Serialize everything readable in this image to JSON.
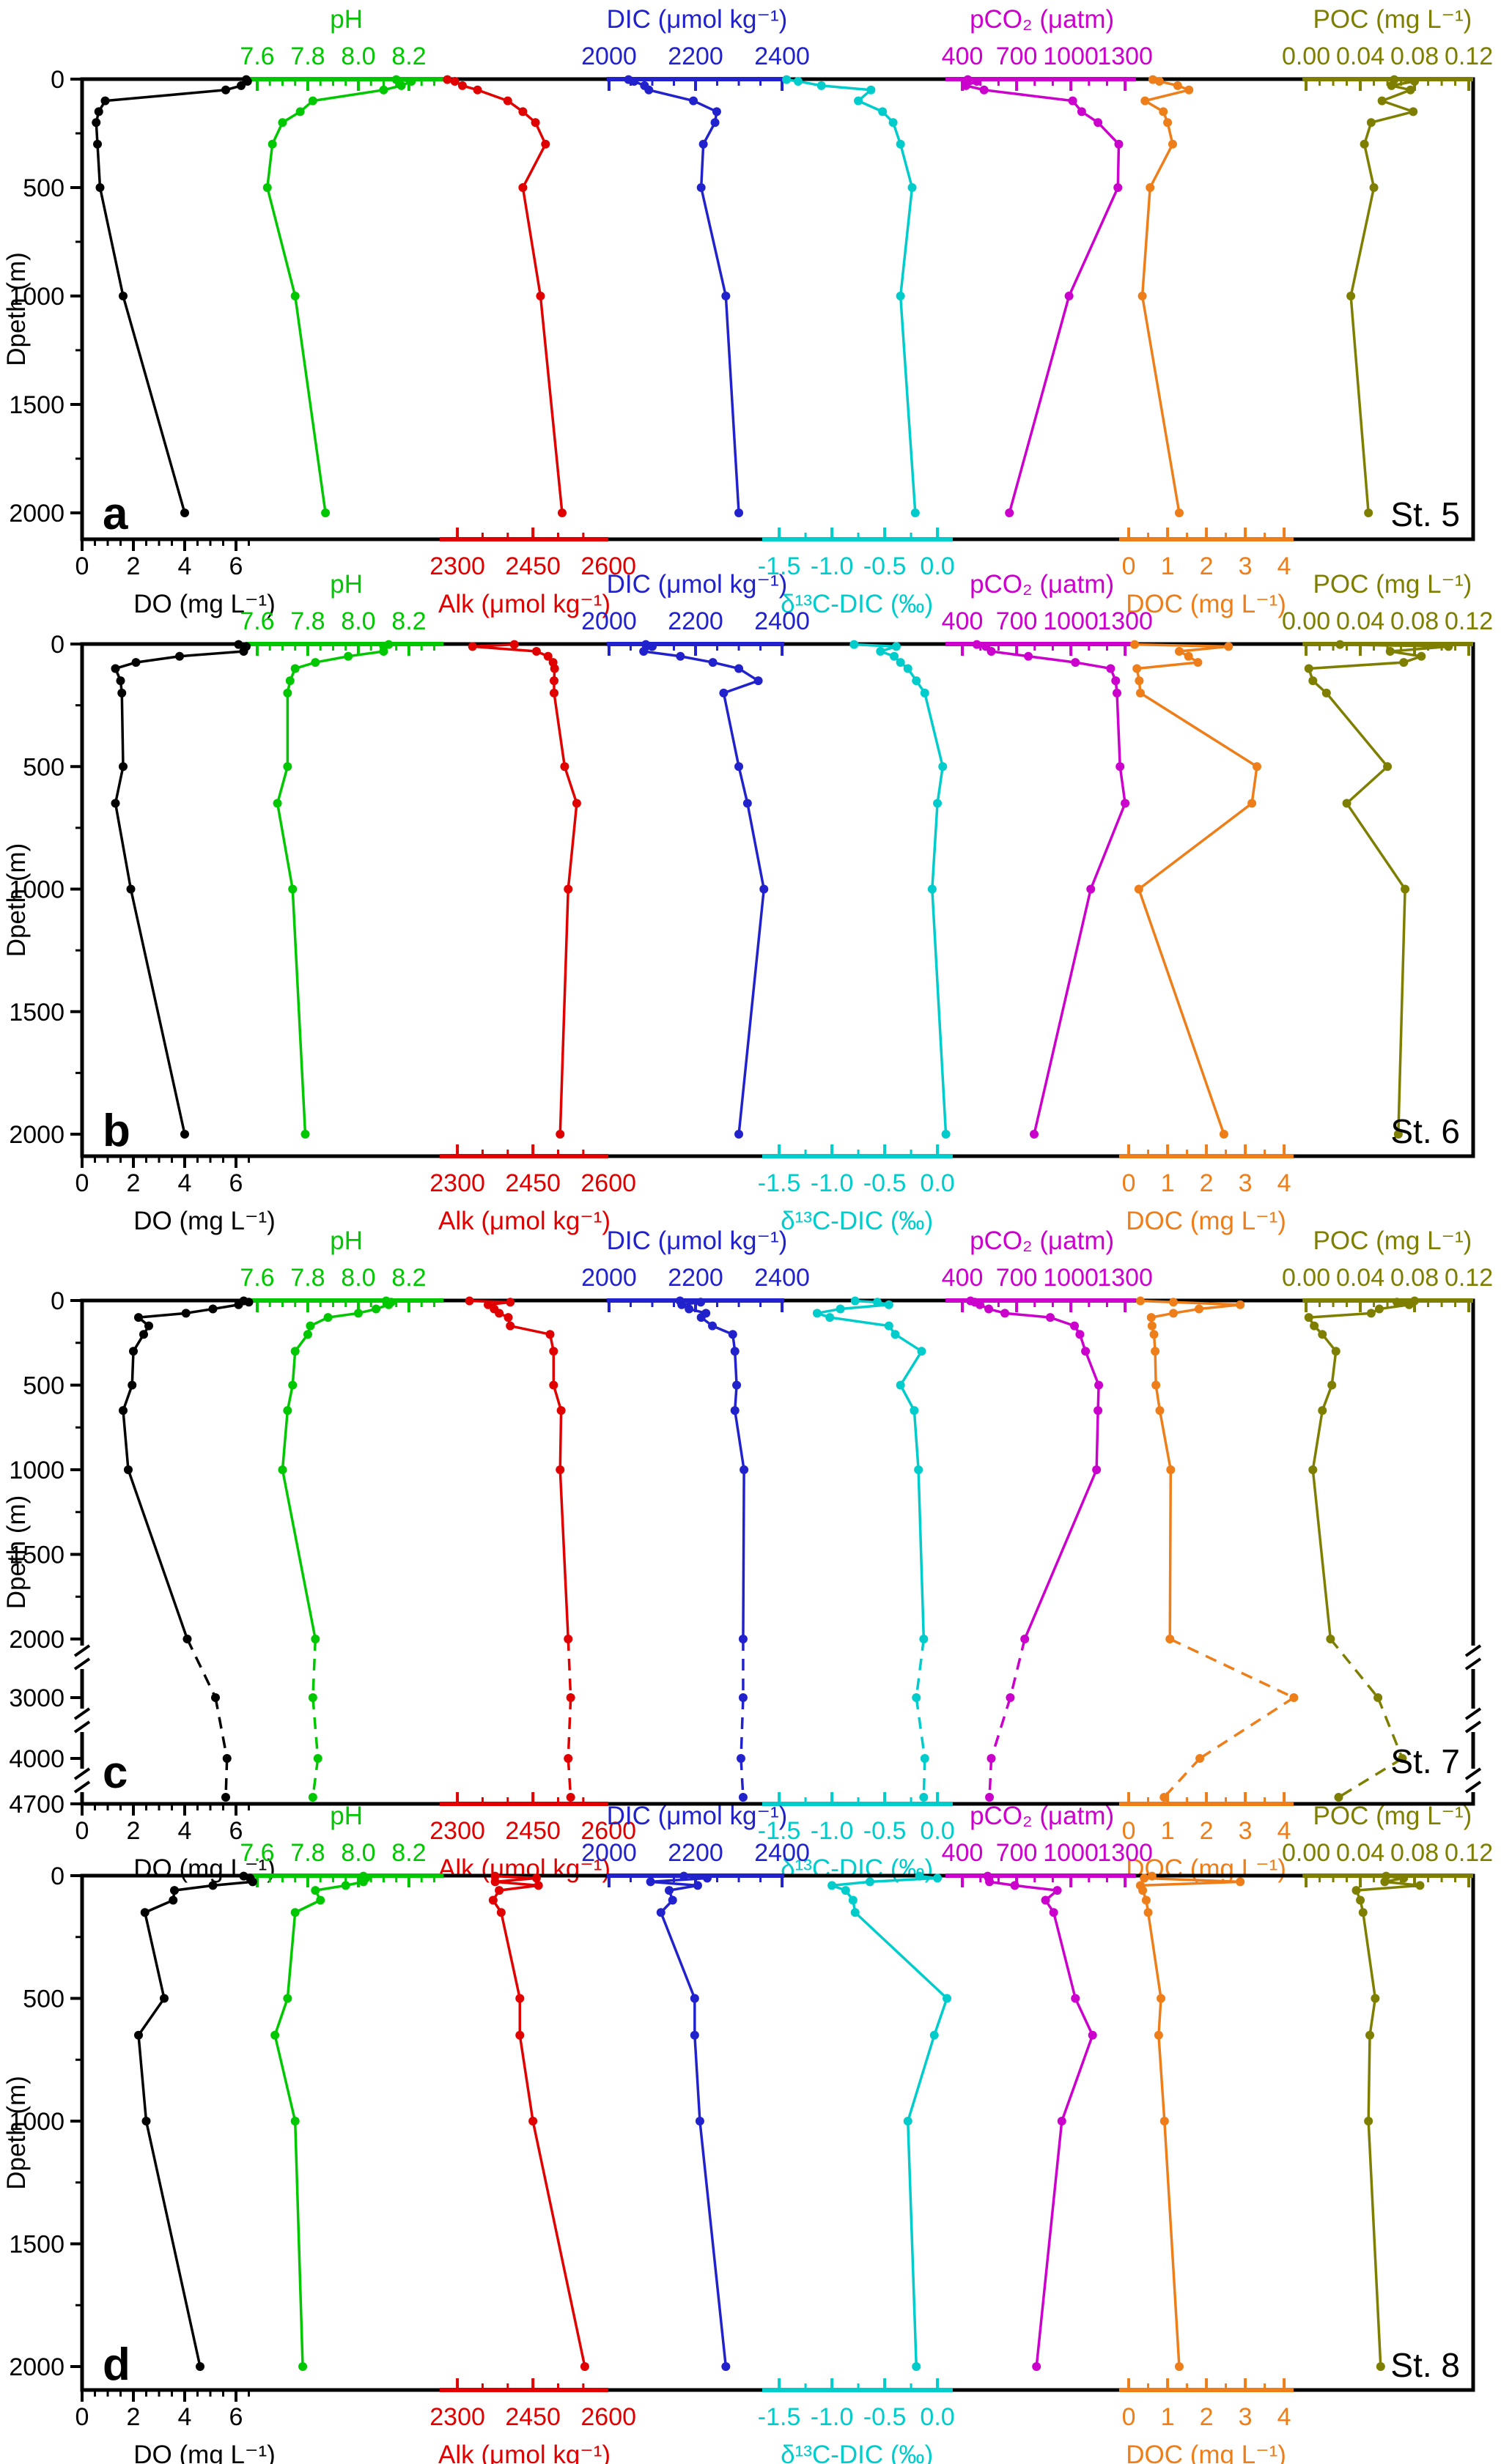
{
  "figure_title": "",
  "chart_data": {
    "type": "line",
    "orientation": "depth-profile",
    "depth_axis_label": "Dpeth (m)",
    "axes": [
      {
        "key": "DO",
        "title": "DO (mg L⁻¹)",
        "color": "#000000",
        "side": "bottom",
        "v0": 0,
        "frac0": 0.0,
        "per_unit": 0.01844,
        "seg": [
          0.0,
          0.129
        ],
        "colored_seg": false,
        "minor": 0.5,
        "ticks": [
          {
            "v": 0,
            "l": "0"
          },
          {
            "v": 2,
            "l": "2"
          },
          {
            "v": 4,
            "l": "4"
          },
          {
            "v": 6,
            "l": "6"
          }
        ],
        "title_frac": 0.088
      },
      {
        "key": "pH",
        "title": "pH",
        "color": "#00C800",
        "side": "top",
        "v0": 7.6,
        "frac0": 0.1259,
        "per_unit": 0.18175,
        "seg": [
          0.1175,
          0.2598
        ],
        "colored_seg": true,
        "minor": 0.05,
        "ticks": [
          {
            "v": 7.6,
            "l": "7.6"
          },
          {
            "v": 7.8,
            "l": "7.8"
          },
          {
            "v": 8.0,
            "l": "8.0"
          },
          {
            "v": 8.2,
            "l": "8.2"
          }
        ],
        "title_frac": 0.19
      },
      {
        "key": "Alk",
        "title": "Alk (μmol kg⁻¹)",
        "color": "#E00000",
        "side": "bottom",
        "v0": 2300,
        "frac0": 0.2698,
        "per_unit": 0.000362,
        "seg": [
          0.2571,
          0.3783
        ],
        "colored_seg": true,
        "minor": 50,
        "ticks": [
          {
            "v": 2300,
            "l": "2300"
          },
          {
            "v": 2450,
            "l": "2450"
          },
          {
            "v": 2600,
            "l": "2600"
          }
        ],
        "title_frac": 0.318
      },
      {
        "key": "DIC",
        "title": "DIC (μmol kg⁻¹)",
        "color": "#2222CC",
        "side": "top",
        "v0": 2000,
        "frac0": 0.3788,
        "per_unit": 0.000311,
        "seg": [
          0.3772,
          0.5048
        ],
        "colored_seg": true,
        "minor": 50,
        "ticks": [
          {
            "v": 2000,
            "l": "2000"
          },
          {
            "v": 2200,
            "l": "2200"
          },
          {
            "v": 2400,
            "l": "2400"
          }
        ],
        "title_frac": 0.442
      },
      {
        "key": "d13C",
        "title": "δ¹³C-DIC (‰)",
        "color": "#00CCCC",
        "side": "bottom",
        "v0": -1.5,
        "frac0": 0.5011,
        "per_unit": 0.07586,
        "seg": [
          0.4889,
          0.6259
        ],
        "colored_seg": true,
        "minor": 0.25,
        "ticks": [
          {
            "v": -1.5,
            "l": "-1.5"
          },
          {
            "v": -1.0,
            "l": "-1.0"
          },
          {
            "v": -0.5,
            "l": "-0.5"
          },
          {
            "v": 0.0,
            "l": "0.0"
          }
        ],
        "title_frac": 0.557
      },
      {
        "key": "pCO2",
        "title": "pCO₂ (μatm)",
        "color": "#CC00CC",
        "side": "top",
        "v0": 400,
        "frac0": 0.6328,
        "per_unit": 0.00013,
        "seg": [
          0.6207,
          0.7576
        ],
        "colored_seg": true,
        "minor": 100,
        "ticks": [
          {
            "v": 400,
            "l": "400"
          },
          {
            "v": 700,
            "l": "700"
          },
          {
            "v": 1000,
            "l": "1000"
          },
          {
            "v": 1300,
            "l": "1300"
          }
        ],
        "title_frac": 0.69
      },
      {
        "key": "DOC",
        "title": "DOC (mg L⁻¹)",
        "color": "#EE7E1A",
        "side": "bottom",
        "v0": 0,
        "frac0": 0.7524,
        "per_unit": 0.02793,
        "seg": [
          0.7455,
          0.8709
        ],
        "colored_seg": true,
        "minor": 0.5,
        "ticks": [
          {
            "v": 0,
            "l": "0"
          },
          {
            "v": 1,
            "l": "1"
          },
          {
            "v": 2,
            "l": "2"
          },
          {
            "v": 3,
            "l": "3"
          },
          {
            "v": 4,
            "l": "4"
          }
        ],
        "title_frac": 0.808
      },
      {
        "key": "POC",
        "title": "POC (mg L⁻¹)",
        "color": "#7E7E00",
        "side": "top",
        "v0": 0,
        "frac0": 0.8799,
        "per_unit": 0.97475,
        "seg": [
          0.8773,
          1.0
        ],
        "colored_seg": true,
        "minor": 0.01,
        "ticks": [
          {
            "v": 0,
            "l": "0.00"
          },
          {
            "v": 0.04,
            "l": "0.04"
          },
          {
            "v": 0.08,
            "l": "0.08"
          },
          {
            "v": 0.12,
            "l": "0.12"
          }
        ],
        "title_frac": 0.942
      }
    ],
    "panels": [
      {
        "id": "a",
        "letter": "a",
        "station": "St. 5",
        "depth_axis_label": "Dpeth (m)",
        "depth_ticks": [
          {
            "v": 0,
            "l": "0"
          },
          {
            "v": 500,
            "l": "500"
          },
          {
            "v": 1000,
            "l": "1000"
          },
          {
            "v": 1500,
            "l": "1500"
          },
          {
            "v": 2000,
            "l": "2000"
          }
        ],
        "broken_axis": false,
        "depths": [
          2,
          10,
          30,
          50,
          100,
          150,
          200,
          300,
          500,
          1000,
          2000
        ],
        "series": {
          "DO": [
            6.4,
            6.45,
            6.2,
            5.6,
            0.9,
            0.65,
            0.55,
            0.6,
            0.7,
            1.6,
            4.0
          ],
          "pH": [
            8.15,
            8.21,
            8.17,
            8.1,
            7.82,
            7.77,
            7.7,
            7.66,
            7.64,
            7.75,
            7.87
          ],
          "Alk": [
            2280,
            2295,
            2310,
            2340,
            2400,
            2430,
            2455,
            2475,
            2430,
            2465,
            2508
          ],
          "DIC": [
            2045,
            2058,
            2082,
            2092,
            2195,
            2249,
            2245,
            2218,
            2213,
            2270,
            2300
          ],
          "d13C": [
            -1.43,
            -1.32,
            -1.1,
            -0.63,
            -0.75,
            -0.52,
            -0.42,
            -0.35,
            -0.24,
            -0.35,
            -0.21
          ],
          "pCO2": [
            430,
            480,
            420,
            520,
            1010,
            1060,
            1150,
            1265,
            1260,
            990,
            660
          ],
          "DOC": [
            0.62,
            0.79,
            1.26,
            1.55,
            0.42,
            0.89,
            1.0,
            1.13,
            0.55,
            0.35,
            1.3
          ],
          "POC": [
            0.065,
            0.08,
            0.063,
            0.077,
            0.056,
            0.079,
            0.048,
            0.043,
            0.05,
            0.033,
            0.046
          ]
        }
      },
      {
        "id": "b",
        "letter": "b",
        "station": "St. 6",
        "depth_axis_label": "Dpeth (m)",
        "depth_ticks": [
          {
            "v": 0,
            "l": "0"
          },
          {
            "v": 500,
            "l": "500"
          },
          {
            "v": 1000,
            "l": "1000"
          },
          {
            "v": 1500,
            "l": "1500"
          },
          {
            "v": 2000,
            "l": "2000"
          }
        ],
        "broken_axis": false,
        "depths": [
          2,
          10,
          30,
          50,
          75,
          100,
          150,
          200,
          500,
          650,
          1000,
          2000
        ],
        "series": {
          "DO": [
            6.1,
            6.4,
            6.3,
            3.8,
            2.1,
            1.3,
            1.5,
            1.55,
            1.6,
            1.3,
            1.9,
            4.0
          ],
          "pH": [
            8.12,
            8.1,
            8.1,
            7.96,
            7.83,
            7.75,
            7.73,
            7.72,
            7.72,
            7.68,
            7.74,
            7.79
          ],
          "Alk": [
            2413,
            2330,
            2457,
            2480,
            2490,
            2493,
            2492,
            2492,
            2513,
            2537,
            2520,
            2504
          ],
          "DIC": [
            2085,
            2100,
            2080,
            2165,
            2240,
            2300,
            2345,
            2265,
            2300,
            2320,
            2358,
            2300
          ],
          "d13C": [
            -0.79,
            -0.39,
            -0.54,
            -0.41,
            -0.35,
            -0.28,
            -0.2,
            -0.12,
            0.05,
            0.0,
            -0.05,
            0.08
          ],
          "pCO2": [
            480,
            530,
            560,
            765,
            1025,
            1220,
            1248,
            1255,
            1272,
            1300,
            1110,
            797
          ],
          "DOC": [
            0.15,
            2.57,
            1.3,
            1.54,
            1.78,
            0.21,
            0.27,
            0.3,
            3.3,
            3.17,
            0.26,
            2.45
          ],
          "POC": [
            0.025,
            0.105,
            0.062,
            0.085,
            0.072,
            0.002,
            0.005,
            0.015,
            0.06,
            0.03,
            0.073,
            0.068
          ]
        }
      },
      {
        "id": "c",
        "letter": "c",
        "station": "St. 7",
        "depth_axis_label": "Dpeth (m)",
        "depth_ticks": [
          {
            "v": 0,
            "l": "0"
          },
          {
            "v": 500,
            "l": "500"
          },
          {
            "v": 1000,
            "l": "1000"
          },
          {
            "v": 1500,
            "l": "1500"
          },
          {
            "v": 2000,
            "l": "2000"
          },
          {
            "v": 3000,
            "l": "3000"
          },
          {
            "v": 4000,
            "l": "4000"
          },
          {
            "v": 4700,
            "l": "4700"
          }
        ],
        "broken_axis": true,
        "depths": [
          2,
          10,
          25,
          50,
          75,
          100,
          150,
          200,
          300,
          500,
          650,
          1000,
          2000,
          3000,
          4000,
          4650
        ],
        "series": {
          "DO": [
            6.3,
            6.5,
            6.1,
            5.1,
            4.05,
            2.2,
            2.6,
            2.4,
            2.0,
            1.95,
            1.6,
            1.8,
            4.1,
            5.2,
            5.65,
            5.6
          ],
          "pH": [
            8.11,
            8.13,
            8.12,
            8.07,
            8.0,
            7.88,
            7.81,
            7.8,
            7.75,
            7.74,
            7.72,
            7.7,
            7.83,
            7.82,
            7.84,
            7.82
          ],
          "Alk": [
            2324,
            2405,
            2361,
            2373,
            2383,
            2401,
            2405,
            2484,
            2491,
            2491,
            2506,
            2504,
            2520,
            2525,
            2520,
            2525
          ],
          "DIC": [
            2164,
            2212,
            2168,
            2185,
            2224,
            2213,
            2239,
            2286,
            2291,
            2295,
            2291,
            2312,
            2310,
            2310,
            2305,
            2310
          ],
          "d13C": [
            -0.78,
            -0.57,
            -0.46,
            -0.92,
            -1.14,
            -1.02,
            -0.46,
            -0.4,
            -0.15,
            -0.35,
            -0.22,
            -0.18,
            -0.13,
            -0.2,
            -0.12,
            -0.13
          ],
          "pCO2": [
            445,
            469,
            497,
            546,
            635,
            886,
            1020,
            1050,
            1081,
            1154,
            1150,
            1142,
            745,
            665,
            560,
            550
          ],
          "DOC": [
            0.3,
            1.15,
            2.87,
            1.81,
            1.15,
            0.58,
            0.6,
            0.65,
            0.68,
            0.7,
            0.8,
            1.08,
            1.06,
            4.25,
            1.83,
            0.91
          ],
          "POC": [
            0.08,
            0.067,
            0.076,
            0.054,
            0.048,
            0.002,
            0.006,
            0.012,
            0.022,
            0.019,
            0.012,
            0.005,
            0.018,
            0.053,
            0.071,
            0.024
          ]
        }
      },
      {
        "id": "d",
        "letter": "d",
        "station": "St. 8",
        "depth_axis_label": "Dpeth (m)",
        "depth_ticks": [
          {
            "v": 0,
            "l": "0"
          },
          {
            "v": 500,
            "l": "500"
          },
          {
            "v": 1000,
            "l": "1000"
          },
          {
            "v": 1500,
            "l": "1500"
          },
          {
            "v": 2000,
            "l": "2000"
          }
        ],
        "broken_axis": false,
        "depths": [
          2,
          10,
          25,
          40,
          60,
          100,
          150,
          500,
          650,
          1000,
          2000
        ],
        "series": {
          "DO": [
            6.3,
            6.55,
            6.65,
            5.1,
            3.6,
            3.55,
            2.45,
            3.2,
            2.2,
            2.5,
            4.6
          ],
          "pH": [
            8.02,
            8.03,
            8.02,
            7.95,
            7.83,
            7.85,
            7.75,
            7.72,
            7.67,
            7.75,
            7.78
          ],
          "Alk": [
            2375,
            2457,
            2375,
            2461,
            2383,
            2371,
            2387,
            2424,
            2424,
            2450,
            2553
          ],
          "DIC": [
            2173,
            2227,
            2096,
            2205,
            2139,
            2147,
            2120,
            2198,
            2198,
            2210,
            2270
          ],
          "d13C": [
            -0.17,
            0.0,
            -0.64,
            -1.0,
            -0.87,
            -0.8,
            -0.78,
            0.09,
            -0.03,
            -0.28,
            -0.2
          ],
          "pCO2": [
            540,
            546,
            550,
            690,
            925,
            860,
            905,
            1025,
            1120,
            950,
            810
          ],
          "DOC": [
            0.6,
            0.4,
            2.87,
            0.3,
            0.36,
            0.45,
            0.5,
            0.83,
            0.77,
            0.92,
            1.3
          ],
          "POC": [
            0.059,
            0.072,
            0.058,
            0.084,
            0.037,
            0.04,
            0.042,
            0.051,
            0.047,
            0.046,
            0.055
          ]
        }
      }
    ]
  }
}
